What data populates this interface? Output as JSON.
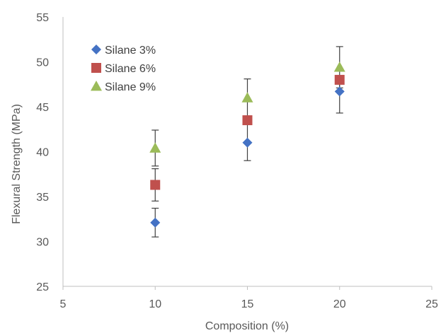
{
  "chart_data": {
    "type": "scatter",
    "title": "",
    "xlabel": "Composition (%)",
    "ylabel": "Flexural Strength (MPa)",
    "xlim": [
      5,
      25
    ],
    "ylim": [
      25,
      55
    ],
    "x_ticks": [
      "5",
      "10",
      "15",
      "20",
      "25"
    ],
    "y_ticks": [
      "25",
      "30",
      "35",
      "40",
      "45",
      "50",
      "55"
    ],
    "grid": false,
    "legend_position": "top-left",
    "series": [
      {
        "name": "Silane 3%",
        "marker": "diamond",
        "color": "#4472C4",
        "points": [
          {
            "x": 10,
            "y": 32.1,
            "err": 1.6
          },
          {
            "x": 15,
            "y": 41.0,
            "err": 2.0
          },
          {
            "x": 20,
            "y": 46.7,
            "err": 0.0
          }
        ]
      },
      {
        "name": "Silane 6%",
        "marker": "square",
        "color": "#C0504D",
        "points": [
          {
            "x": 10,
            "y": 36.3,
            "err": 1.8
          },
          {
            "x": 15,
            "y": 43.5,
            "err": 0.0
          },
          {
            "x": 20,
            "y": 48.0,
            "err": 0.0
          }
        ]
      },
      {
        "name": "Silane 9%",
        "marker": "triangle",
        "color": "#9BBB59",
        "points": [
          {
            "x": 10,
            "y": 40.4,
            "err": 2.0
          },
          {
            "x": 15,
            "y": 46.0,
            "err": 2.1
          },
          {
            "x": 20,
            "y": 49.4,
            "err": 2.3
          }
        ]
      }
    ],
    "error_bar_only_series": [
      {
        "x": 20,
        "low": 44.3,
        "high": 48.3,
        "note": "Silane 3% at 20"
      }
    ]
  }
}
